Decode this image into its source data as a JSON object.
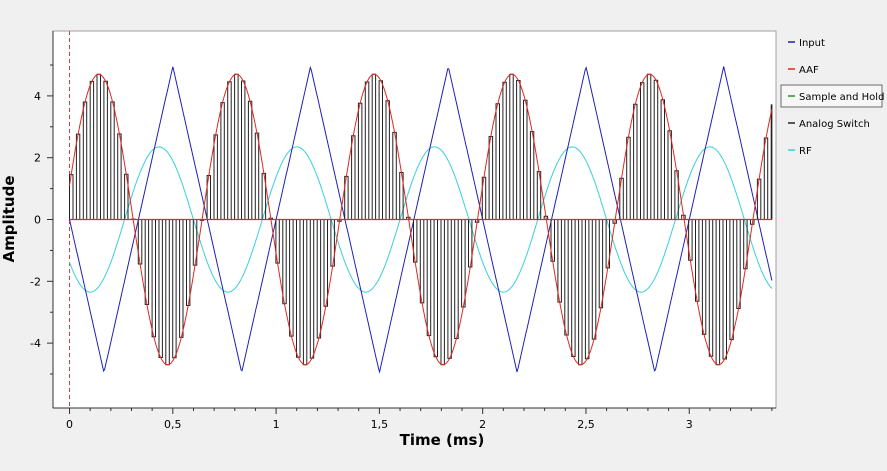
{
  "chart_data": {
    "type": "line",
    "title": "",
    "xlabel": "Time (ms)",
    "ylabel": "Amplitude",
    "xlim": [
      -0.08,
      3.42
    ],
    "ylim": [
      -6.1,
      6.1
    ],
    "x_ticks": [
      {
        "v": 0,
        "label": "0"
      },
      {
        "v": 0.5,
        "label": "0,5"
      },
      {
        "v": 1,
        "label": "1"
      },
      {
        "v": 1.5,
        "label": "1,5"
      },
      {
        "v": 2,
        "label": "2"
      },
      {
        "v": 2.5,
        "label": "2,5"
      },
      {
        "v": 3,
        "label": "3"
      }
    ],
    "y_ticks": [
      {
        "v": -4,
        "label": "-4"
      },
      {
        "v": -2,
        "label": "-2"
      },
      {
        "v": 0,
        "label": "0"
      },
      {
        "v": 2,
        "label": "2"
      },
      {
        "v": 4,
        "label": "4"
      }
    ],
    "signal": {
      "period_ms": 0.6667,
      "input_amplitude": 4.95,
      "input_phase_ms": 0.1667,
      "aaf_amplitude": 4.7,
      "aaf_phase_ms": 0.3083,
      "rf_amplitude": 2.35,
      "rf_peak_ms": 0.4333,
      "sample_interval_ms": 0.0333,
      "sample_width_fraction": 0.5,
      "sample_end_ms": 3.4,
      "x_end_ms": 3.4
    },
    "series": [
      {
        "name": "Input",
        "color": "#1f1fb4"
      },
      {
        "name": "AAF",
        "color": "#e0281e"
      },
      {
        "name": "Sample and Hold",
        "color": "#1a9a1a"
      },
      {
        "name": "Analog Switch",
        "color": "#222222"
      },
      {
        "name": "RF",
        "color": "#38d0dc"
      }
    ],
    "legend_position": "right",
    "legend_selected": "Sample and Hold",
    "marker": {
      "x_ms": 0.0,
      "color": "#d04040"
    }
  }
}
